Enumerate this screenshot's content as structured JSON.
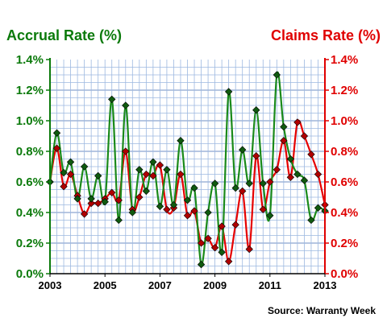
{
  "chart_data": {
    "type": "line",
    "left_axis_title": "Accrual Rate (%)",
    "right_axis_title": "Claims Rate (%)",
    "source": "Source: Warranty Week",
    "left_axis_color": "#0b7a0b",
    "right_axis_color": "#e00000",
    "grid": true,
    "grid_color": "#9db8e0",
    "ylim": [
      0,
      1.4
    ],
    "xlim": [
      2003,
      2013
    ],
    "yticks": [
      "0.0%",
      "0.2%",
      "0.4%",
      "0.6%",
      "0.8%",
      "1.0%",
      "1.2%",
      "1.4%"
    ],
    "xticks": [
      "2003",
      "2005",
      "2007",
      "2009",
      "2011",
      "2013"
    ],
    "series": [
      {
        "color": "#1a8a1a",
        "axis": "left",
        "x": [
          2003.0,
          2003.25,
          2003.5,
          2003.75,
          2004.0,
          2004.25,
          2004.5,
          2004.75,
          2005.0,
          2005.25,
          2005.5,
          2005.75,
          2006.0,
          2006.25,
          2006.5,
          2006.75,
          2007.0,
          2007.25,
          2007.5,
          2007.75,
          2008.0,
          2008.25,
          2008.5,
          2008.75,
          2009.0,
          2009.25,
          2009.5,
          2009.75,
          2010.0,
          2010.25,
          2010.5,
          2010.75,
          2011.0,
          2011.25,
          2011.5,
          2011.75,
          2012.0,
          2012.25,
          2012.5,
          2012.75,
          2013.0
        ],
        "values": [
          0.6,
          0.92,
          0.66,
          0.73,
          0.49,
          0.7,
          0.49,
          0.64,
          0.47,
          1.14,
          0.35,
          1.1,
          0.4,
          0.68,
          0.54,
          0.73,
          0.44,
          0.68,
          0.45,
          0.87,
          0.48,
          0.56,
          0.06,
          0.4,
          0.59,
          0.14,
          1.19,
          0.56,
          0.81,
          0.59,
          1.07,
          0.59,
          0.38,
          1.3,
          0.96,
          0.75,
          0.65,
          0.61,
          0.35,
          0.43,
          0.41
        ]
      },
      {
        "color": "#e60000",
        "axis": "right",
        "x": [
          2003.0,
          2003.25,
          2003.5,
          2003.75,
          2004.0,
          2004.25,
          2004.5,
          2004.75,
          2005.0,
          2005.25,
          2005.5,
          2005.75,
          2006.0,
          2006.25,
          2006.5,
          2006.75,
          2007.0,
          2007.25,
          2007.5,
          2007.75,
          2008.0,
          2008.25,
          2008.5,
          2008.75,
          2009.0,
          2009.25,
          2009.5,
          2009.75,
          2010.0,
          2010.25,
          2010.5,
          2010.75,
          2011.0,
          2011.25,
          2011.5,
          2011.75,
          2012.0,
          2012.25,
          2012.5,
          2012.75,
          2013.0
        ],
        "values": [
          0.6,
          0.82,
          0.57,
          0.65,
          0.51,
          0.39,
          0.46,
          0.46,
          0.49,
          0.53,
          0.48,
          0.8,
          0.42,
          0.5,
          0.65,
          0.64,
          0.71,
          0.42,
          0.43,
          0.65,
          0.38,
          0.41,
          0.2,
          0.23,
          0.17,
          0.31,
          0.08,
          0.32,
          0.54,
          0.16,
          0.77,
          0.42,
          0.6,
          0.68,
          0.87,
          0.63,
          0.99,
          0.9,
          0.78,
          0.65,
          0.45
        ]
      }
    ]
  }
}
